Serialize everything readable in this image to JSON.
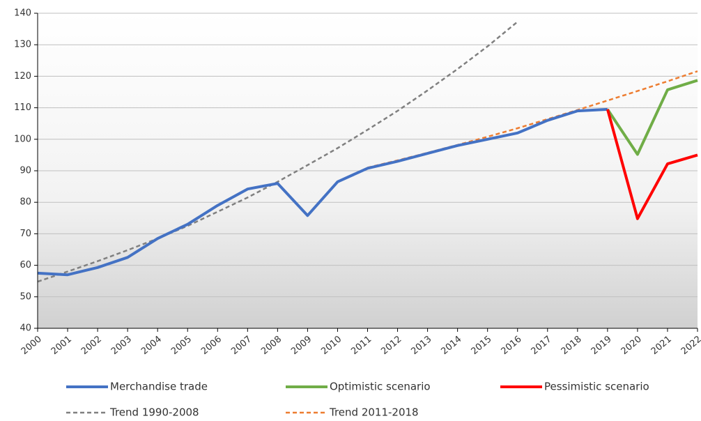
{
  "chart_data": {
    "type": "line",
    "categories": [
      "2000",
      "2001",
      "2002",
      "2003",
      "2004",
      "2005",
      "2006",
      "2007",
      "2008",
      "2009",
      "2010",
      "2011",
      "2012",
      "2013",
      "2014",
      "2015",
      "2016",
      "2017",
      "2018",
      "2019",
      "2020",
      "2021",
      "2022"
    ],
    "series": [
      {
        "name": "Merchandise trade",
        "color": "#4472c4",
        "dashed": false,
        "values": [
          57.5,
          57,
          59.3,
          62.5,
          68.5,
          73,
          79,
          84.2,
          86,
          75.8,
          86.5,
          90.8,
          93,
          95.5,
          98,
          100,
          102,
          106,
          109,
          109.5,
          null,
          null,
          null
        ]
      },
      {
        "name": "Optimistic scenario",
        "color": "#70ad47",
        "dashed": false,
        "values": [
          null,
          null,
          null,
          null,
          null,
          null,
          null,
          null,
          null,
          null,
          null,
          null,
          null,
          null,
          null,
          null,
          null,
          null,
          null,
          109.5,
          95.2,
          115.7,
          118.7
        ]
      },
      {
        "name": "Pessimistic scenario",
        "color": "#ff0000",
        "dashed": false,
        "values": [
          null,
          null,
          null,
          null,
          null,
          null,
          null,
          null,
          null,
          null,
          null,
          null,
          null,
          null,
          null,
          null,
          null,
          null,
          null,
          109.5,
          74.8,
          92.2,
          95
        ]
      },
      {
        "name": "Trend 1990-2008",
        "color": "#808080",
        "dashed": true,
        "values": [
          54.8,
          58,
          61.3,
          64.8,
          68.5,
          72.5,
          77,
          81.5,
          86.5,
          91.8,
          97.2,
          103,
          109,
          115.5,
          122.3,
          129.5,
          137.3,
          null,
          null,
          null,
          null,
          null,
          null
        ]
      },
      {
        "name": "Trend 2011-2018",
        "color": "#ed7d31",
        "dashed": true,
        "values": [
          null,
          null,
          null,
          null,
          null,
          null,
          null,
          null,
          null,
          null,
          null,
          91,
          93.3,
          95.7,
          98.2,
          100.8,
          103.5,
          106.4,
          109.3,
          112.3,
          115.3,
          118.4,
          121.6
        ]
      }
    ],
    "ylim": [
      40,
      140
    ],
    "yticks": [
      40,
      50,
      60,
      70,
      80,
      90,
      100,
      110,
      120,
      130,
      140
    ],
    "grid": true
  }
}
